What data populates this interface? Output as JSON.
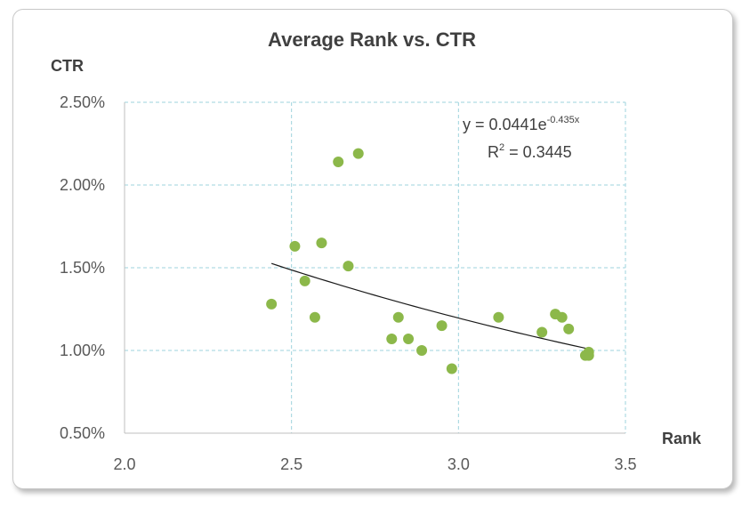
{
  "chart_data": {
    "type": "scatter",
    "title": "Average Rank vs. CTR",
    "xlabel": "Rank",
    "ylabel": "CTR",
    "xlim": [
      2.0,
      3.5
    ],
    "ylim": [
      0.005,
      0.025
    ],
    "x_ticks": [
      "2.0",
      "2.5",
      "3.0",
      "3.5"
    ],
    "y_ticks": [
      "0.50%",
      "1.00%",
      "1.50%",
      "2.00%",
      "2.50%"
    ],
    "grid": true,
    "marker_color": "#8cb84a",
    "trendline_color": "#1a1a1a",
    "series": [
      {
        "points": [
          {
            "x": 2.44,
            "y": 0.0128
          },
          {
            "x": 2.51,
            "y": 0.0163
          },
          {
            "x": 2.54,
            "y": 0.0142
          },
          {
            "x": 2.57,
            "y": 0.012
          },
          {
            "x": 2.59,
            "y": 0.0165
          },
          {
            "x": 2.64,
            "y": 0.0214
          },
          {
            "x": 2.67,
            "y": 0.0151
          },
          {
            "x": 2.7,
            "y": 0.0219
          },
          {
            "x": 2.8,
            "y": 0.0107
          },
          {
            "x": 2.82,
            "y": 0.012
          },
          {
            "x": 2.85,
            "y": 0.0107
          },
          {
            "x": 2.89,
            "y": 0.01
          },
          {
            "x": 2.95,
            "y": 0.0115
          },
          {
            "x": 2.98,
            "y": 0.0089
          },
          {
            "x": 3.12,
            "y": 0.012
          },
          {
            "x": 3.25,
            "y": 0.0111
          },
          {
            "x": 3.29,
            "y": 0.0122
          },
          {
            "x": 3.31,
            "y": 0.012
          },
          {
            "x": 3.33,
            "y": 0.0113
          },
          {
            "x": 3.38,
            "y": 0.0097
          },
          {
            "x": 3.39,
            "y": 0.0099
          },
          {
            "x": 3.39,
            "y": 0.0097
          }
        ]
      }
    ],
    "trendline": {
      "type": "exponential",
      "a": 0.0441,
      "b": -0.435,
      "x_range": [
        2.44,
        3.39
      ],
      "equation_prefix": "y = 0.0441e",
      "equation_exponent": "-0.435x",
      "r2_prefix": "R",
      "r2_power": "2",
      "r2_value": " = 0.3445"
    }
  }
}
